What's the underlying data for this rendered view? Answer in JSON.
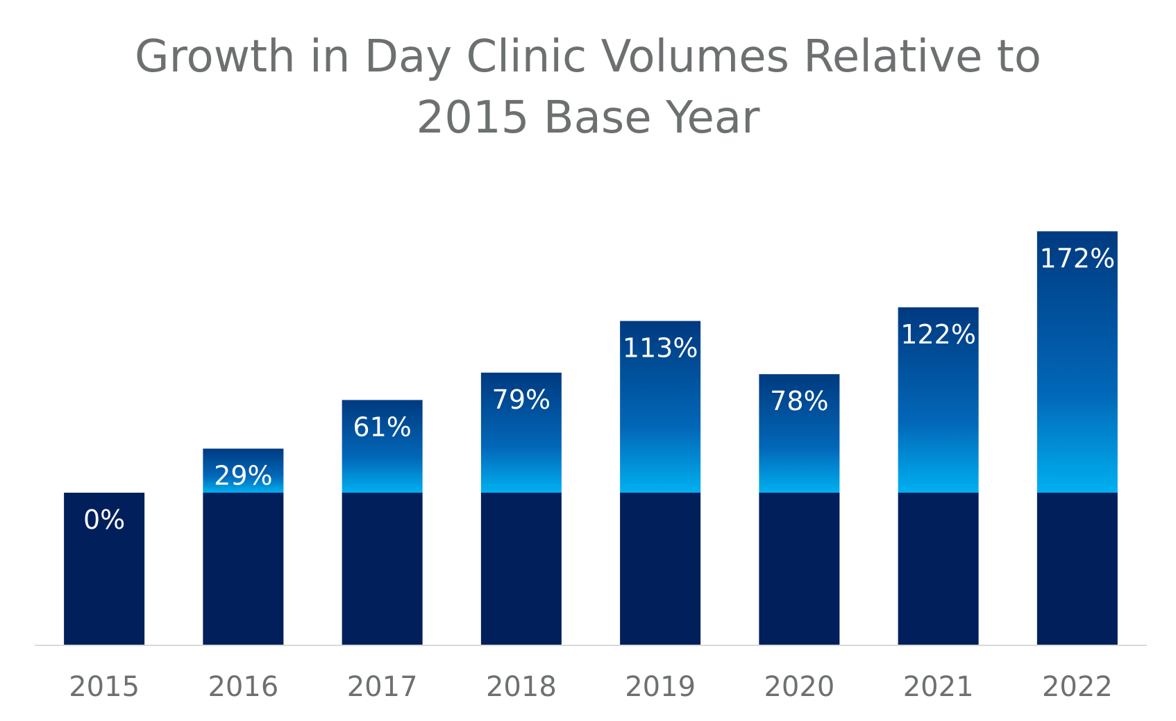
{
  "chart_data": {
    "type": "bar",
    "title_lines": [
      "Growth in Day Clinic Volumes Relative to",
      "2015 Base Year"
    ],
    "categories": [
      "2015",
      "2016",
      "2017",
      "2018",
      "2019",
      "2020",
      "2021",
      "2022"
    ],
    "values": [
      0,
      29,
      61,
      79,
      113,
      78,
      122,
      172
    ],
    "data_labels": [
      "0%",
      "29%",
      "61%",
      "79%",
      "113%",
      "78%",
      "122%",
      "172%"
    ],
    "base_value": 100,
    "ylim": [
      0,
      272
    ],
    "xlabel": "",
    "ylabel": "",
    "grid": false,
    "legend": "none",
    "colors": {
      "base": "#001f5b",
      "growth_top": "#003a80",
      "growth_bottom": "#00b0f0",
      "title": "#6d7071",
      "tick": "#6d7071",
      "axis": "#d9d9d9",
      "label": "#ffffff"
    }
  }
}
